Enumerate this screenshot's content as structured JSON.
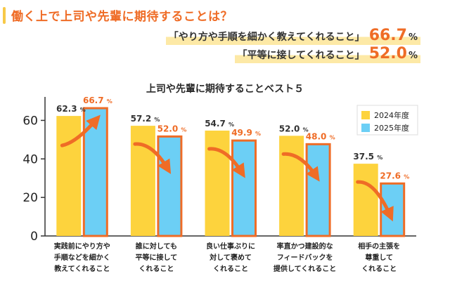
{
  "header": {
    "question": "働く上で上司や先輩に期待することは？",
    "highlights": [
      {
        "text": "「やり方や手順を細かく教えてくれること」",
        "value": "66.7",
        "unit": "%"
      },
      {
        "text": "「平等に接してくれること」",
        "value": "52.0",
        "unit": "%"
      }
    ]
  },
  "colors": {
    "accent": "#ef6c26",
    "series_2024": "#fdd33d",
    "series_2025": "#6ccff5",
    "highlight": "#fde9a6",
    "axis": "#333333"
  },
  "chart_data": {
    "type": "bar",
    "title": "上司や先輩に期待することベスト５",
    "categories": [
      [
        "実践前にやり方や",
        "手順などを細かく",
        "教えてくれること"
      ],
      [
        "誰に対しても",
        "平等に接して",
        "くれること"
      ],
      [
        "良い仕事ぶりに",
        "対して褒めて",
        "くれること"
      ],
      [
        "率直かつ建設的な",
        "フィードバックを",
        "提供してくれること"
      ],
      [
        "相手の主張を",
        "尊重して",
        "くれること"
      ]
    ],
    "series": [
      {
        "name": "2024年度",
        "values": [
          62.3,
          57.2,
          54.7,
          52.0,
          37.5
        ],
        "labels": [
          "62.3",
          "57.2",
          "54.7",
          "52.0",
          "37.5"
        ]
      },
      {
        "name": "2025年度",
        "values": [
          66.7,
          52.0,
          49.9,
          48.0,
          27.6
        ],
        "labels": [
          "66.7",
          "52.0",
          "49.9",
          "48.0",
          "27.6"
        ]
      }
    ],
    "unit": "%",
    "ylim": [
      0,
      70
    ],
    "yticks": [
      "0",
      "20",
      "40",
      "60"
    ],
    "legend_position": "top-right",
    "grid": false,
    "trend": [
      "up",
      "down",
      "down",
      "down",
      "down"
    ]
  }
}
